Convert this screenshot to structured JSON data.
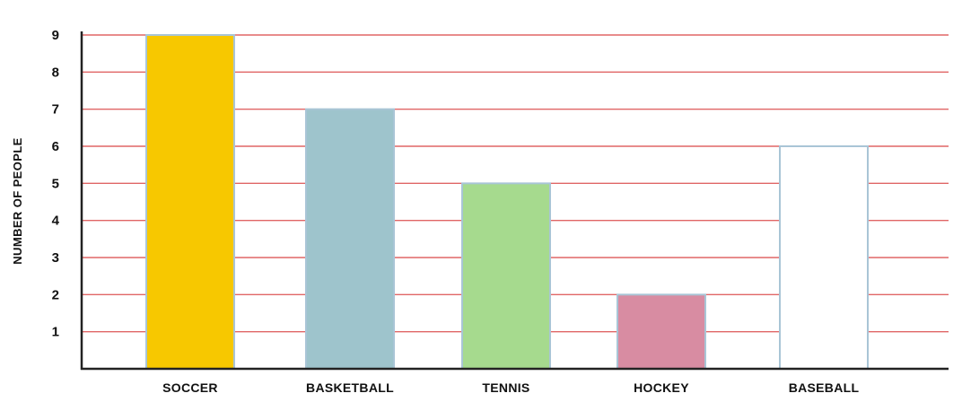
{
  "chart_data": {
    "type": "bar",
    "title": "",
    "xlabel": "",
    "ylabel": "NUMBER OF PEOPLE",
    "categories": [
      "SOCCER",
      "BASKETBALL",
      "TENNIS",
      "HOCKEY",
      "BASEBALL"
    ],
    "values": [
      9,
      7,
      5,
      2,
      6
    ],
    "colors": [
      "#f7c800",
      "#9ec4cc",
      "#a6da8e",
      "#d88ca2",
      "#ffffff"
    ],
    "bar_border_color": "#a9c5d6",
    "gridline_color": "#e06666",
    "axis_color": "#222222",
    "ylim": [
      0,
      9
    ],
    "yticks": [
      1,
      2,
      3,
      4,
      5,
      6,
      7,
      8,
      9
    ],
    "grid": true,
    "legend": "none"
  }
}
